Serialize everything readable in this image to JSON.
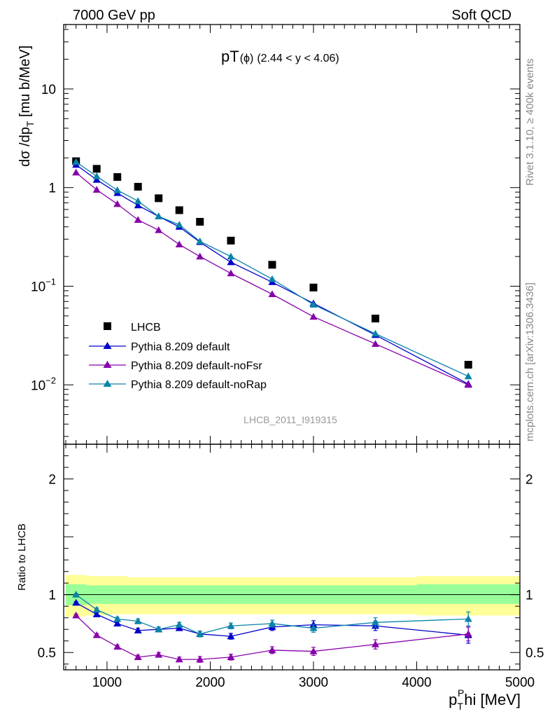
{
  "header": {
    "energy_label": "7000 GeV pp",
    "process_label": "Soft QCD"
  },
  "side": {
    "rivet_label": "Rivet 3.1.10, ≥ 400k events",
    "mcplots_label": "mcplots.cern.ch [arXiv:1306.3436]"
  },
  "main_plot": {
    "title_pt": "pT",
    "title_phi": "(ϕ)",
    "title_range": "(2.44 < y < 4.06)",
    "ylabel_main": "dσ /dp",
    "ylabel_sub": "T",
    "ylabel_unit": " [mu b/MeV]",
    "analysis_label": "LHCB_2011_I919315"
  },
  "ratio_plot": {
    "ylabel": "Ratio to LHCB"
  },
  "xaxis": {
    "label_p": "p",
    "label_sub": "T",
    "label_sup": "P",
    "label_rest": "hi [MeV]"
  },
  "chart_data": [
    {
      "type": "scatter",
      "panel": "main",
      "xlim": [
        580,
        5000
      ],
      "ylim": [
        0.0025,
        45
      ],
      "yscale": "log",
      "x_ticks": [
        1000,
        2000,
        3000,
        4000,
        5000
      ],
      "y_ticks": [
        {
          "v": 0.01,
          "base": "10",
          "exp": "−2"
        },
        {
          "v": 0.1,
          "base": "10",
          "exp": "−1"
        },
        {
          "v": 1,
          "base": "1",
          "exp": ""
        },
        {
          "v": 10,
          "base": "10",
          "exp": ""
        }
      ],
      "legend_position": "lower-left",
      "series": [
        {
          "name": "LHCB",
          "color": "#000000",
          "marker": "square",
          "x": [
            700,
            900,
            1100,
            1300,
            1500,
            1700,
            1900,
            2200,
            2600,
            3000,
            3600,
            4500
          ],
          "y": [
            1.85,
            1.55,
            1.28,
            1.02,
            0.78,
            0.59,
            0.45,
            0.29,
            0.165,
            0.097,
            0.047,
            0.016
          ]
        },
        {
          "name": "Pythia 8.209 default",
          "color": "#0000cc",
          "marker": "triangle",
          "x": [
            700,
            900,
            1100,
            1300,
            1500,
            1700,
            1900,
            2200,
            2600,
            3000,
            3600,
            4500
          ],
          "y": [
            1.7,
            1.2,
            0.88,
            0.66,
            0.51,
            0.4,
            0.28,
            0.175,
            0.11,
            0.067,
            0.032,
            0.0102
          ]
        },
        {
          "name": "Pythia 8.209 default-noFsr",
          "color": "#8800aa",
          "marker": "triangle",
          "x": [
            700,
            900,
            1100,
            1300,
            1500,
            1700,
            1900,
            2200,
            2600,
            3000,
            3600,
            4500
          ],
          "y": [
            1.42,
            0.95,
            0.68,
            0.47,
            0.37,
            0.265,
            0.2,
            0.135,
            0.083,
            0.049,
            0.026,
            0.01
          ]
        },
        {
          "name": "Pythia 8.209 default-noRap",
          "color": "#0a84a8",
          "marker": "triangle",
          "x": [
            700,
            900,
            1100,
            1300,
            1500,
            1700,
            1900,
            2200,
            2600,
            3000,
            3600,
            4500
          ],
          "y": [
            1.82,
            1.3,
            0.94,
            0.73,
            0.51,
            0.42,
            0.285,
            0.2,
            0.118,
            0.065,
            0.033,
            0.0122
          ]
        }
      ]
    },
    {
      "type": "scatter",
      "panel": "ratio",
      "xlim": [
        580,
        5000
      ],
      "ylim": [
        0.35,
        2.3
      ],
      "y_ticks": [
        0.5,
        1,
        2
      ],
      "reference_line": 1,
      "bands": {
        "edges": [
          600,
          800,
          1000,
          1200,
          1400,
          1600,
          1800,
          2000,
          2400,
          2800,
          3200,
          4000,
          5000
        ],
        "yellow_lo": [
          0.81,
          0.82,
          0.83,
          0.83,
          0.83,
          0.83,
          0.83,
          0.83,
          0.83,
          0.83,
          0.83,
          0.82
        ],
        "yellow_hi": [
          1.17,
          1.16,
          1.16,
          1.15,
          1.15,
          1.15,
          1.15,
          1.15,
          1.15,
          1.15,
          1.15,
          1.16
        ],
        "green_lo": [
          0.91,
          0.92,
          0.92,
          0.92,
          0.92,
          0.92,
          0.92,
          0.92,
          0.92,
          0.92,
          0.92,
          0.92
        ],
        "green_hi": [
          1.09,
          1.08,
          1.08,
          1.08,
          1.08,
          1.08,
          1.08,
          1.08,
          1.08,
          1.08,
          1.08,
          1.09
        ]
      },
      "series": [
        {
          "name": "Pythia 8.209 default",
          "color": "#0000cc",
          "x": [
            700,
            900,
            1100,
            1300,
            1500,
            1700,
            1900,
            2200,
            2600,
            3000,
            3600,
            4500
          ],
          "y": [
            0.93,
            0.83,
            0.75,
            0.69,
            0.7,
            0.71,
            0.66,
            0.64,
            0.72,
            0.74,
            0.73,
            0.65
          ],
          "err": [
            0.01,
            0.015,
            0.015,
            0.02,
            0.02,
            0.02,
            0.025,
            0.025,
            0.03,
            0.035,
            0.04,
            0.07
          ]
        },
        {
          "name": "Pythia 8.209 default-noFsr",
          "color": "#8800aa",
          "x": [
            700,
            900,
            1100,
            1300,
            1500,
            1700,
            1900,
            2200,
            2600,
            3000,
            3600,
            4500
          ],
          "y": [
            0.82,
            0.65,
            0.55,
            0.46,
            0.48,
            0.44,
            0.44,
            0.46,
            0.52,
            0.51,
            0.57,
            0.66
          ],
          "err": [
            0.01,
            0.012,
            0.015,
            0.018,
            0.02,
            0.02,
            0.025,
            0.025,
            0.03,
            0.035,
            0.04,
            0.06
          ]
        },
        {
          "name": "Pythia 8.209 default-noRap",
          "color": "#0a84a8",
          "x": [
            700,
            900,
            1100,
            1300,
            1500,
            1700,
            1900,
            2200,
            2600,
            3000,
            3600,
            4500
          ],
          "y": [
            1.0,
            0.87,
            0.79,
            0.77,
            0.7,
            0.74,
            0.66,
            0.73,
            0.75,
            0.71,
            0.76,
            0.79
          ],
          "err": [
            0.01,
            0.015,
            0.015,
            0.02,
            0.02,
            0.02,
            0.025,
            0.025,
            0.03,
            0.035,
            0.04,
            0.06
          ]
        }
      ]
    }
  ]
}
